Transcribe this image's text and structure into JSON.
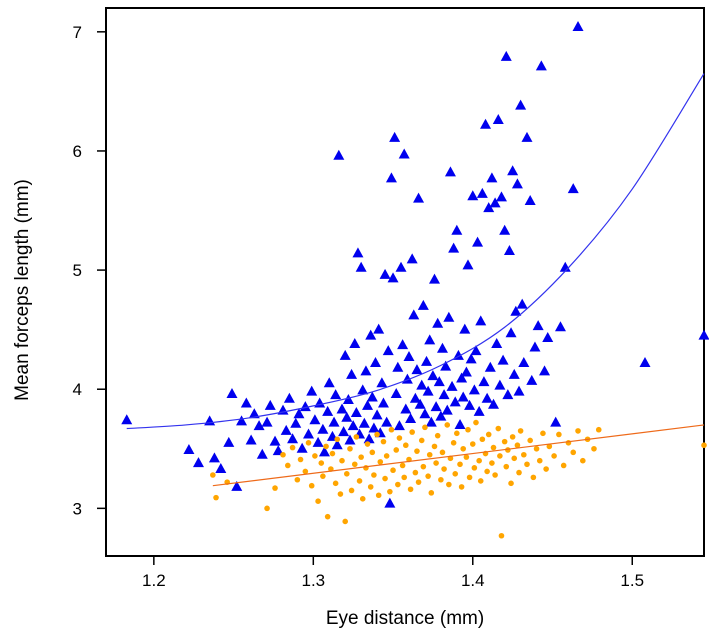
{
  "chart_data": {
    "type": "scatter",
    "title": "",
    "xlabel": "Eye distance (mm)",
    "ylabel": "Mean forceps length (mm)",
    "xlim": [
      1.17,
      1.545
    ],
    "ylim": [
      2.6,
      7.2
    ],
    "xticks": [
      "1.2",
      "1.3",
      "1.4",
      "1.5"
    ],
    "yticks": [
      "3",
      "4",
      "5",
      "6",
      "7"
    ],
    "grid": false,
    "legend": "none",
    "series": [
      {
        "marker": "triangle",
        "color": "#0000ee",
        "points": [
          [
            1.183,
            3.74
          ],
          [
            1.222,
            3.49
          ],
          [
            1.228,
            3.38
          ],
          [
            1.235,
            3.73
          ],
          [
            1.238,
            3.42
          ],
          [
            1.242,
            3.33
          ],
          [
            1.247,
            3.55
          ],
          [
            1.249,
            3.96
          ],
          [
            1.252,
            3.18
          ],
          [
            1.255,
            3.73
          ],
          [
            1.258,
            3.88
          ],
          [
            1.261,
            3.57
          ],
          [
            1.263,
            3.79
          ],
          [
            1.266,
            3.69
          ],
          [
            1.268,
            3.45
          ],
          [
            1.271,
            3.72
          ],
          [
            1.273,
            3.86
          ],
          [
            1.276,
            3.56
          ],
          [
            1.278,
            3.48
          ],
          [
            1.281,
            3.82
          ],
          [
            1.283,
            3.65
          ],
          [
            1.285,
            3.92
          ],
          [
            1.287,
            3.58
          ],
          [
            1.289,
            3.71
          ],
          [
            1.291,
            3.79
          ],
          [
            1.293,
            3.5
          ],
          [
            1.295,
            3.85
          ],
          [
            1.297,
            3.62
          ],
          [
            1.299,
            3.98
          ],
          [
            1.301,
            3.74
          ],
          [
            1.303,
            3.55
          ],
          [
            1.304,
            3.88
          ],
          [
            1.306,
            3.66
          ],
          [
            1.307,
            3.47
          ],
          [
            1.309,
            3.81
          ],
          [
            1.31,
            4.05
          ],
          [
            1.312,
            3.6
          ],
          [
            1.313,
            3.72
          ],
          [
            1.314,
            3.95
          ],
          [
            1.315,
            3.53
          ],
          [
            1.316,
            5.96
          ],
          [
            1.318,
            3.83
          ],
          [
            1.319,
            3.64
          ],
          [
            1.32,
            4.28
          ],
          [
            1.321,
            3.76
          ],
          [
            1.322,
            3.91
          ],
          [
            1.323,
            3.57
          ],
          [
            1.324,
            4.12
          ],
          [
            1.325,
            3.69
          ],
          [
            1.326,
            4.38
          ],
          [
            1.327,
            3.8
          ],
          [
            1.328,
            5.14
          ],
          [
            1.329,
            3.62
          ],
          [
            1.33,
            5.02
          ],
          [
            1.331,
            3.99
          ],
          [
            1.332,
            3.71
          ],
          [
            1.333,
            4.15
          ],
          [
            1.334,
            3.86
          ],
          [
            1.335,
            3.58
          ],
          [
            1.336,
            4.45
          ],
          [
            1.337,
            3.93
          ],
          [
            1.338,
            3.67
          ],
          [
            1.339,
            4.22
          ],
          [
            1.34,
            3.78
          ],
          [
            1.341,
            4.5
          ],
          [
            1.342,
            3.63
          ],
          [
            1.343,
            4.05
          ],
          [
            1.344,
            3.88
          ],
          [
            1.345,
            4.96
          ],
          [
            1.346,
            3.72
          ],
          [
            1.347,
            4.32
          ],
          [
            1.348,
            3.04
          ],
          [
            1.349,
            5.77
          ],
          [
            1.35,
            4.93
          ],
          [
            1.351,
            6.11
          ],
          [
            1.352,
            3.96
          ],
          [
            1.353,
            4.18
          ],
          [
            1.354,
            3.69
          ],
          [
            1.355,
            5.02
          ],
          [
            1.356,
            4.37
          ],
          [
            1.357,
            5.97
          ],
          [
            1.358,
            3.83
          ],
          [
            1.359,
            4.08
          ],
          [
            1.36,
            4.27
          ],
          [
            1.361,
            3.75
          ],
          [
            1.362,
            5.09
          ],
          [
            1.363,
            4.62
          ],
          [
            1.364,
            3.92
          ],
          [
            1.365,
            4.16
          ],
          [
            1.366,
            5.6
          ],
          [
            1.367,
            3.87
          ],
          [
            1.368,
            4.03
          ],
          [
            1.369,
            4.7
          ],
          [
            1.37,
            3.79
          ],
          [
            1.371,
            4.23
          ],
          [
            1.372,
            3.98
          ],
          [
            1.373,
            4.41
          ],
          [
            1.374,
            3.72
          ],
          [
            1.375,
            4.11
          ],
          [
            1.376,
            4.92
          ],
          [
            1.377,
            3.85
          ],
          [
            1.378,
            4.55
          ],
          [
            1.379,
            4.06
          ],
          [
            1.38,
            3.77
          ],
          [
            1.381,
            4.34
          ],
          [
            1.382,
            3.95
          ],
          [
            1.383,
            4.19
          ],
          [
            1.384,
            3.82
          ],
          [
            1.385,
            4.6
          ],
          [
            1.386,
            5.82
          ],
          [
            1.387,
            4.02
          ],
          [
            1.388,
            5.18
          ],
          [
            1.389,
            3.89
          ],
          [
            1.39,
            5.33
          ],
          [
            1.391,
            4.28
          ],
          [
            1.392,
            3.7
          ],
          [
            1.393,
            4.09
          ],
          [
            1.394,
            3.93
          ],
          [
            1.395,
            4.5
          ],
          [
            1.396,
            4.14
          ],
          [
            1.397,
            5.04
          ],
          [
            1.398,
            3.86
          ],
          [
            1.399,
            4.25
          ],
          [
            1.4,
            5.62
          ],
          [
            1.401,
            3.99
          ],
          [
            1.402,
            4.32
          ],
          [
            1.403,
            5.23
          ],
          [
            1.404,
            3.81
          ],
          [
            1.405,
            4.57
          ],
          [
            1.406,
            5.64
          ],
          [
            1.407,
            4.06
          ],
          [
            1.408,
            6.22
          ],
          [
            1.409,
            3.92
          ],
          [
            1.41,
            5.52
          ],
          [
            1.411,
            4.18
          ],
          [
            1.412,
            5.77
          ],
          [
            1.413,
            3.87
          ],
          [
            1.414,
            5.56
          ],
          [
            1.415,
            4.38
          ],
          [
            1.416,
            6.26
          ],
          [
            1.417,
            4.03
          ],
          [
            1.418,
            5.61
          ],
          [
            1.419,
            4.24
          ],
          [
            1.42,
            5.33
          ],
          [
            1.421,
            6.79
          ],
          [
            1.422,
            3.95
          ],
          [
            1.423,
            5.16
          ],
          [
            1.424,
            4.47
          ],
          [
            1.425,
            5.83
          ],
          [
            1.426,
            4.12
          ],
          [
            1.427,
            4.65
          ],
          [
            1.428,
            5.72
          ],
          [
            1.429,
            3.98
          ],
          [
            1.43,
            6.38
          ],
          [
            1.431,
            4.71
          ],
          [
            1.432,
            4.22
          ],
          [
            1.434,
            6.11
          ],
          [
            1.436,
            5.58
          ],
          [
            1.437,
            4.07
          ],
          [
            1.439,
            4.35
          ],
          [
            1.441,
            4.53
          ],
          [
            1.443,
            6.71
          ],
          [
            1.445,
            4.15
          ],
          [
            1.447,
            4.43
          ],
          [
            1.452,
            3.72
          ],
          [
            1.455,
            4.52
          ],
          [
            1.458,
            5.02
          ],
          [
            1.463,
            5.68
          ],
          [
            1.466,
            7.04
          ],
          [
            1.508,
            4.22
          ],
          [
            1.545,
            4.45
          ]
        ]
      },
      {
        "marker": "circle",
        "color": "#ffa500",
        "points": [
          [
            1.237,
            3.28
          ],
          [
            1.239,
            3.09
          ],
          [
            1.246,
            3.22
          ],
          [
            1.271,
            3.0
          ],
          [
            1.276,
            3.17
          ],
          [
            1.281,
            3.45
          ],
          [
            1.284,
            3.36
          ],
          [
            1.287,
            3.51
          ],
          [
            1.29,
            3.24
          ],
          [
            1.292,
            3.41
          ],
          [
            1.295,
            3.31
          ],
          [
            1.297,
            3.55
          ],
          [
            1.299,
            3.19
          ],
          [
            1.301,
            3.44
          ],
          [
            1.303,
            3.06
          ],
          [
            1.305,
            3.38
          ],
          [
            1.306,
            3.27
          ],
          [
            1.308,
            3.52
          ],
          [
            1.309,
            2.93
          ],
          [
            1.311,
            3.33
          ],
          [
            1.312,
            3.46
          ],
          [
            1.314,
            3.21
          ],
          [
            1.315,
            3.58
          ],
          [
            1.317,
            3.12
          ],
          [
            1.318,
            3.4
          ],
          [
            1.32,
            2.89
          ],
          [
            1.321,
            3.29
          ],
          [
            1.323,
            3.5
          ],
          [
            1.324,
            3.15
          ],
          [
            1.326,
            3.37
          ],
          [
            1.327,
            3.6
          ],
          [
            1.329,
            3.23
          ],
          [
            1.33,
            3.43
          ],
          [
            1.331,
            3.08
          ],
          [
            1.333,
            3.34
          ],
          [
            1.334,
            3.54
          ],
          [
            1.336,
            3.18
          ],
          [
            1.337,
            3.47
          ],
          [
            1.338,
            3.28
          ],
          [
            1.34,
            3.62
          ],
          [
            1.341,
            3.11
          ],
          [
            1.342,
            3.39
          ],
          [
            1.344,
            3.56
          ],
          [
            1.345,
            3.25
          ],
          [
            1.346,
            3.44
          ],
          [
            1.348,
            3.14
          ],
          [
            1.349,
            3.66
          ],
          [
            1.35,
            3.32
          ],
          [
            1.352,
            3.49
          ],
          [
            1.353,
            3.2
          ],
          [
            1.354,
            3.59
          ],
          [
            1.356,
            3.36
          ],
          [
            1.357,
            3.26
          ],
          [
            1.358,
            3.53
          ],
          [
            1.36,
            3.41
          ],
          [
            1.361,
            3.16
          ],
          [
            1.362,
            3.64
          ],
          [
            1.364,
            3.3
          ],
          [
            1.365,
            3.48
          ],
          [
            1.366,
            3.22
          ],
          [
            1.368,
            3.57
          ],
          [
            1.369,
            3.35
          ],
          [
            1.37,
            3.68
          ],
          [
            1.372,
            3.27
          ],
          [
            1.373,
            3.45
          ],
          [
            1.374,
            3.13
          ],
          [
            1.376,
            3.52
          ],
          [
            1.377,
            3.38
          ],
          [
            1.378,
            3.61
          ],
          [
            1.38,
            3.24
          ],
          [
            1.381,
            3.47
          ],
          [
            1.382,
            3.33
          ],
          [
            1.384,
            3.7
          ],
          [
            1.385,
            3.2
          ],
          [
            1.386,
            3.42
          ],
          [
            1.388,
            3.55
          ],
          [
            1.389,
            3.29
          ],
          [
            1.39,
            3.63
          ],
          [
            1.392,
            3.37
          ],
          [
            1.393,
            3.18
          ],
          [
            1.394,
            3.5
          ],
          [
            1.396,
            3.43
          ],
          [
            1.397,
            3.66
          ],
          [
            1.398,
            3.26
          ],
          [
            1.4,
            3.54
          ],
          [
            1.401,
            3.34
          ],
          [
            1.402,
            3.72
          ],
          [
            1.404,
            3.4
          ],
          [
            1.405,
            3.23
          ],
          [
            1.406,
            3.58
          ],
          [
            1.408,
            3.46
          ],
          [
            1.409,
            3.31
          ],
          [
            1.41,
            3.62
          ],
          [
            1.412,
            3.38
          ],
          [
            1.413,
            3.51
          ],
          [
            1.414,
            3.28
          ],
          [
            1.416,
            3.67
          ],
          [
            1.417,
            3.44
          ],
          [
            1.418,
            2.77
          ],
          [
            1.42,
            3.56
          ],
          [
            1.421,
            3.35
          ],
          [
            1.422,
            3.49
          ],
          [
            1.424,
            3.21
          ],
          [
            1.425,
            3.6
          ],
          [
            1.426,
            3.42
          ],
          [
            1.428,
            3.53
          ],
          [
            1.429,
            3.3
          ],
          [
            1.43,
            3.65
          ],
          [
            1.432,
            3.45
          ],
          [
            1.434,
            3.37
          ],
          [
            1.436,
            3.57
          ],
          [
            1.438,
            3.26
          ],
          [
            1.44,
            3.5
          ],
          [
            1.442,
            3.4
          ],
          [
            1.444,
            3.63
          ],
          [
            1.446,
            3.33
          ],
          [
            1.448,
            3.52
          ],
          [
            1.451,
            3.44
          ],
          [
            1.454,
            3.62
          ],
          [
            1.457,
            3.36
          ],
          [
            1.46,
            3.55
          ],
          [
            1.463,
            3.47
          ],
          [
            1.466,
            3.65
          ],
          [
            1.469,
            3.4
          ],
          [
            1.472,
            3.58
          ],
          [
            1.476,
            3.5
          ],
          [
            1.479,
            3.66
          ],
          [
            1.545,
            3.53
          ]
        ]
      }
    ],
    "curves": [
      {
        "color": "#3333ee",
        "points": [
          [
            1.183,
            3.67
          ],
          [
            1.22,
            3.7
          ],
          [
            1.26,
            3.76
          ],
          [
            1.3,
            3.86
          ],
          [
            1.34,
            3.99
          ],
          [
            1.38,
            4.2
          ],
          [
            1.42,
            4.52
          ],
          [
            1.46,
            5.02
          ],
          [
            1.5,
            5.68
          ],
          [
            1.545,
            6.65
          ]
        ]
      },
      {
        "color": "#ee6a1a",
        "points": [
          [
            1.237,
            3.19
          ],
          [
            1.545,
            3.7
          ]
        ]
      }
    ]
  }
}
